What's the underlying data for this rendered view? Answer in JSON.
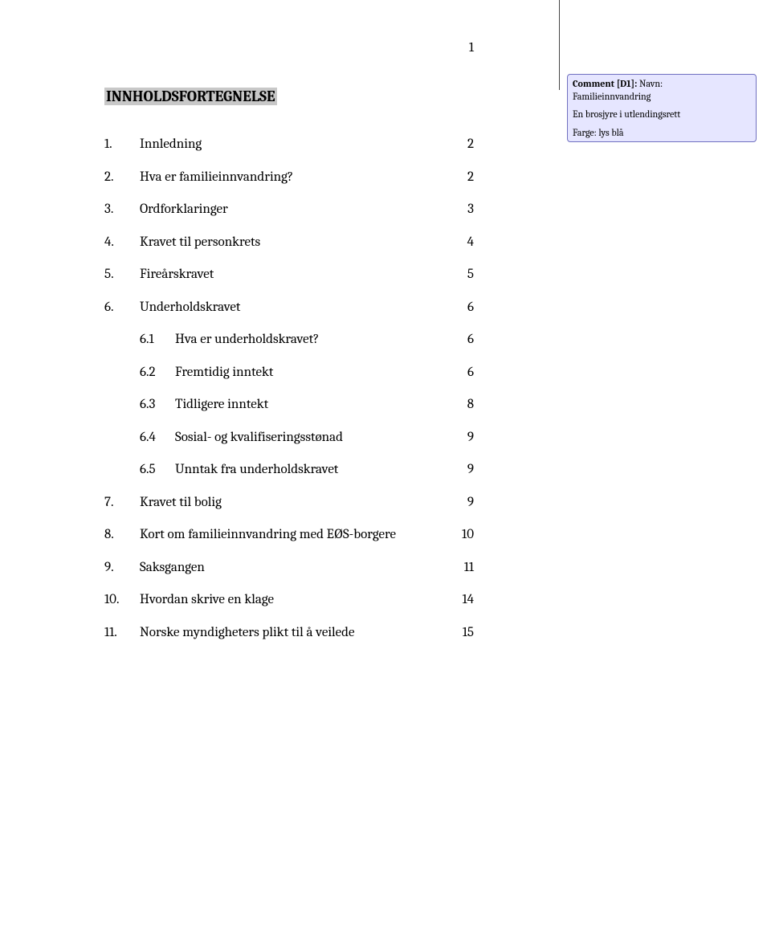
{
  "page_number": "1",
  "title": "INNHOLDSFORTEGNELSE",
  "toc": [
    {
      "num": "1.",
      "text": "Innledning",
      "page": "2",
      "sub": false
    },
    {
      "num": "2.",
      "text": "Hva er familieinnvandring?",
      "page": "2",
      "sub": false
    },
    {
      "num": "3.",
      "text": "Ordforklaringer",
      "page": "3",
      "sub": false
    },
    {
      "num": "4.",
      "text": "Kravet til personkrets",
      "page": "4",
      "sub": false
    },
    {
      "num": "5.",
      "text": "Fireårskravet",
      "page": "5",
      "sub": false
    },
    {
      "num": "6.",
      "text": "Underholdskravet",
      "page": "6",
      "sub": false
    },
    {
      "num": "6.1",
      "text": "Hva er underholdskravet?",
      "page": "6",
      "sub": true
    },
    {
      "num": "6.2",
      "text": "Fremtidig inntekt",
      "page": "6",
      "sub": true
    },
    {
      "num": "6.3",
      "text": "Tidligere inntekt",
      "page": "8",
      "sub": true
    },
    {
      "num": "6.4",
      "text": "Sosial- og kvalifiseringsstønad",
      "page": "9",
      "sub": true
    },
    {
      "num": "6.5",
      "text": "Unntak fra underholdskravet",
      "page": "9",
      "sub": true
    },
    {
      "num": "7.",
      "text": "Kravet til bolig",
      "page": "9",
      "sub": false
    },
    {
      "num": "8.",
      "text": "Kort om familieinnvandring med EØS-borgere",
      "page": "10",
      "sub": false
    },
    {
      "num": "9.",
      "text": "Saksgangen",
      "page": "11",
      "sub": false
    },
    {
      "num": "10.",
      "text": "Hvordan skrive en klage",
      "page": "14",
      "sub": false
    },
    {
      "num": "11.",
      "text": "Norske myndigheters plikt til å veilede",
      "page": "15",
      "sub": false
    }
  ],
  "comment": {
    "label": "Comment [D1]:",
    "line1_label": " Navn:",
    "line1_value": "Familieinnvandring",
    "line2": "En brosjyre i utlendingsrett",
    "line3": "Farge: lys blå"
  },
  "colors": {
    "highlight_bg": "#c8c8c8",
    "comment_bg": "#e6e6ff",
    "comment_border": "#7070c0",
    "page_bg": "#ffffff",
    "text": "#000000"
  },
  "fonts": {
    "body_family": "Cambria, Georgia, serif",
    "body_size_pt": 12,
    "title_size_pt": 14,
    "title_weight": "bold",
    "comment_size_pt": 9
  }
}
